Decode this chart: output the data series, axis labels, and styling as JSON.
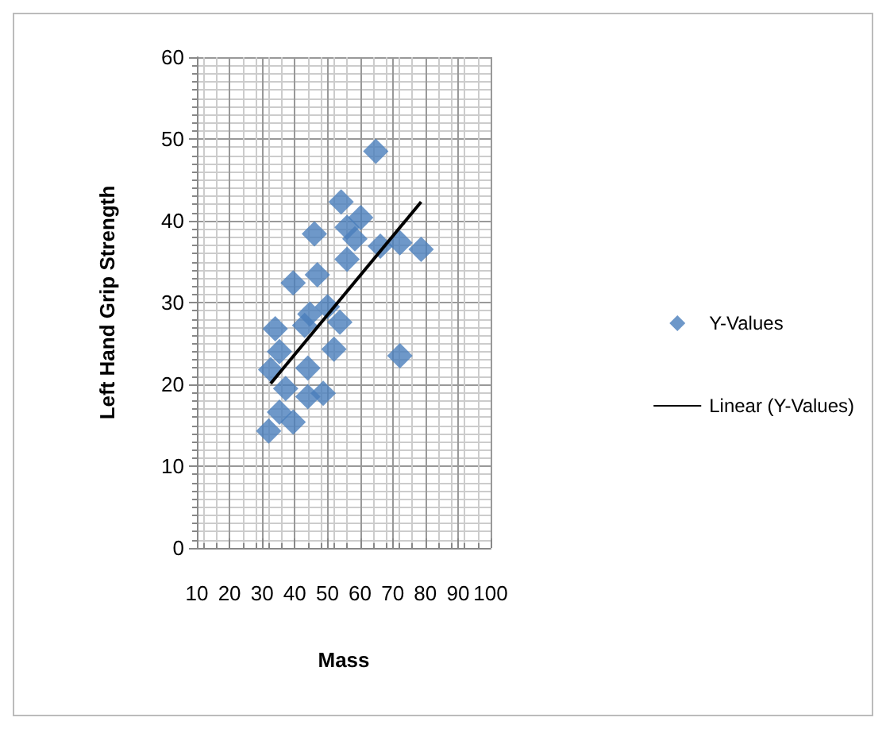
{
  "chart_data": {
    "type": "scatter",
    "xlabel": "Mass",
    "ylabel": "Left Hand Grip Strength",
    "xlim": [
      10,
      100
    ],
    "xticks": [
      10,
      20,
      30,
      40,
      50,
      60,
      70,
      80,
      90,
      100
    ],
    "ylim": [
      0,
      60
    ],
    "yticks": [
      0,
      10,
      20,
      30,
      40,
      50,
      60
    ],
    "grid": true,
    "legend": "right",
    "marker": "diamond",
    "series": [
      {
        "name": "Y-Values",
        "color": "#4a7ebb",
        "x": [
          39.5,
          46.9,
          44.6,
          50,
          53.8,
          34,
          43,
          35.3,
          52,
          32.6,
          44,
          37.2,
          48.7,
          44,
          35.3,
          39.5,
          32,
          72.2,
          64.8,
          54.2,
          60.2,
          46,
          56,
          58.4,
          66.2,
          72.2,
          78.7,
          56
        ],
        "values": [
          32.4,
          33.4,
          28.6,
          29.5,
          27.6,
          26.8,
          27.2,
          24,
          24.3,
          21.8,
          22,
          19.5,
          18.9,
          18.5,
          16.6,
          15.4,
          14.3,
          23.5,
          48.5,
          42.3,
          40.4,
          38.4,
          39.2,
          37.8,
          36.9,
          37.3,
          36.5,
          35.3
        ]
      },
      {
        "name": "Linear (Y-Values)",
        "type": "line",
        "color": "#000000",
        "x": [
          32.6,
          78.7
        ],
        "values": [
          20.1,
          42.3
        ],
        "marker": "none",
        "line_style": "solid"
      }
    ]
  }
}
